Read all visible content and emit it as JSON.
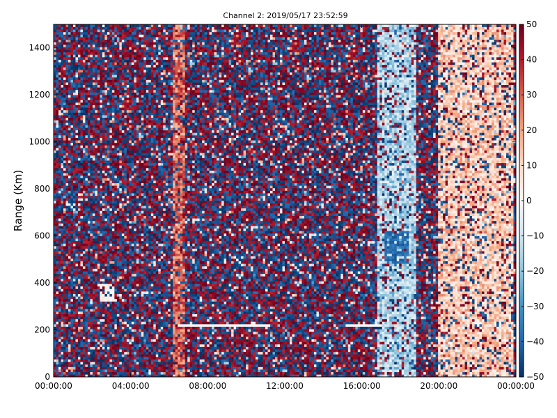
{
  "chart_data": {
    "type": "heatmap",
    "title": "Channel 2: 2019/05/17 23:52:59",
    "ylabel": "Range (Km)",
    "xlabel": "",
    "x_ticks": [
      "00:00:00",
      "04:00:00",
      "08:00:00",
      "12:00:00",
      "16:00:00",
      "20:00:00",
      "00:00:00"
    ],
    "x_range_hours": [
      0,
      24
    ],
    "y_ticks": [
      "0",
      "200",
      "400",
      "600",
      "800",
      "1000",
      "1200",
      "1400"
    ],
    "y_range": [
      0,
      1500
    ],
    "colorbar": {
      "min": -50,
      "max": 50,
      "ticks": [
        "50",
        "40",
        "30",
        "20",
        "10",
        "0",
        "−10",
        "−20",
        "−30",
        "−40",
        "−50"
      ],
      "colormap": "RdBu_r",
      "colors": [
        "#053061",
        "#2166ac",
        "#4393c3",
        "#92c5de",
        "#d1e5f0",
        "#f7f7f7",
        "#fddbc7",
        "#f4a582",
        "#d6604d",
        "#b2182b",
        "#67001f"
      ]
    },
    "features": [
      {
        "kind": "noise",
        "x": [
          0,
          24
        ],
        "y": [
          0,
          1500
        ],
        "values": [
          -50,
          50
        ]
      },
      {
        "kind": "band",
        "x": [
          6.2,
          6.8
        ],
        "y": [
          0,
          1500
        ],
        "value": 28
      },
      {
        "kind": "band",
        "x": [
          16.8,
          18.8
        ],
        "y": [
          0,
          1500
        ],
        "value": -15
      },
      {
        "kind": "band",
        "x": [
          20.0,
          23.9
        ],
        "y": [
          0,
          1500
        ],
        "value": 12
      },
      {
        "kind": "streak",
        "x": [
          6.5,
          11.2
        ],
        "y": [
          210,
          225
        ],
        "value": 0
      },
      {
        "kind": "streak",
        "x": [
          15.2,
          17.0
        ],
        "y": [
          210,
          225
        ],
        "value": 0
      },
      {
        "kind": "patch",
        "x": [
          2.4,
          3.2
        ],
        "y": [
          320,
          400
        ],
        "value": 2
      },
      {
        "kind": "patch",
        "x": [
          17.2,
          18.4
        ],
        "y": [
          480,
          620
        ],
        "value": -38
      }
    ]
  }
}
